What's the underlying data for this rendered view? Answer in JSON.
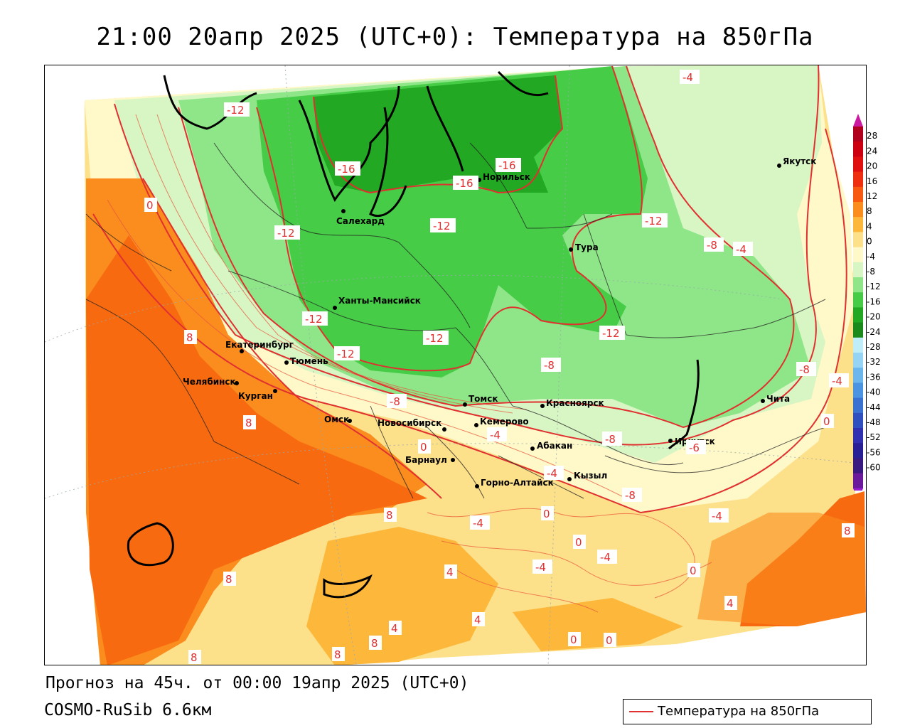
{
  "title": "21:00 20апр 2025 (UTC+0): Температура на 850гПа",
  "footer": {
    "forecast": "Прогноз на 45ч. от 00:00 19апр 2025 (UTC+0)",
    "model": "COSMO-RuSib 6.6км"
  },
  "legend": {
    "label": "Температура на 850гПа",
    "line_color": "#e03030"
  },
  "colorbar": {
    "ticks": [
      "28",
      "24",
      "20",
      "16",
      "12",
      "8",
      "4",
      "0",
      "-4",
      "-8",
      "-12",
      "-16",
      "-20",
      "-24",
      "-28",
      "-32",
      "-36",
      "-40",
      "-44",
      "-48",
      "-52",
      "-56",
      "-60"
    ],
    "colors": [
      "#b0001e",
      "#cc0010",
      "#e01010",
      "#ee3010",
      "#f75a10",
      "#fb8c1e",
      "#fdb83c",
      "#fde08a",
      "#fff8c8",
      "#d8f5c4",
      "#8ee688",
      "#46cc46",
      "#22a822",
      "#1a8a1a",
      "#bfeef8",
      "#96d4f5",
      "#6cb6ee",
      "#4a94e2",
      "#3a72d2",
      "#3050c0",
      "#3030b0",
      "#2a2095",
      "#3a1a80",
      "#6a1a9a"
    ],
    "top_arrow_color": "#cc1aa0",
    "bottom_arrow_color": "#9a1ad0"
  },
  "cities": [
    {
      "name": "Якутск"
    },
    {
      "name": "Норильск"
    },
    {
      "name": "Салехард"
    },
    {
      "name": "Тура"
    },
    {
      "name": "Ханты-Мансийск"
    },
    {
      "name": "Екатеринбург"
    },
    {
      "name": "Тюмень"
    },
    {
      "name": "Челябинск"
    },
    {
      "name": "Курган"
    },
    {
      "name": "Омск"
    },
    {
      "name": "Новосибирск"
    },
    {
      "name": "Томск"
    },
    {
      "name": "Кемерово"
    },
    {
      "name": "Красноярск"
    },
    {
      "name": "Абакан"
    },
    {
      "name": "Барнаул"
    },
    {
      "name": "Горно-Алтайск"
    },
    {
      "name": "Кызыл"
    },
    {
      "name": "Иркутск"
    },
    {
      "name": "Чита"
    }
  ],
  "isotherm_labels": [
    "-12",
    "-16",
    "-16",
    "-16",
    "-4",
    "0",
    "-12",
    "-12",
    "-12",
    "-8",
    "-4",
    "-12",
    "-12",
    "-12",
    "-12",
    "8",
    "-8",
    "-8",
    "-4",
    "-4",
    "-8",
    "-6",
    "-8",
    "-8",
    "-4",
    "8",
    "0",
    "-4",
    "8",
    "0",
    "-4",
    "8",
    "0",
    "-4",
    "-4",
    "0",
    "0",
    "4",
    "4",
    "4",
    "4",
    "8",
    "8",
    "8",
    "0",
    "0",
    "8"
  ],
  "colors": {
    "isotherm": "#e03030"
  }
}
